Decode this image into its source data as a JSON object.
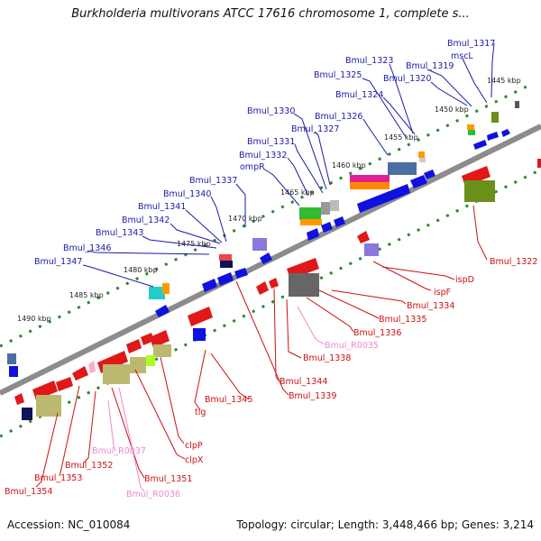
{
  "title": "Burkholderia multivorans ATCC 17616 chromosome 1, complete s...",
  "accession": "Accession: NC_010084",
  "summary": "Topology: circular; Length: 3,448,466 bp; Genes: 3,214",
  "colors": {
    "backbone": "#8c8c8c",
    "forward_gene": "#1010e0",
    "reverse_gene": "#e01818",
    "forward_label": "#1a1aa8",
    "reverse_label": "#cc1111",
    "rna_label": "#ee88cc",
    "tick_dots": "#2a8a2a"
  },
  "kbp_ticks": [
    "1445 kbp",
    "1450 kbp",
    "1455 kbp",
    "1460 kbp",
    "1465 kbp",
    "1470 kbp",
    "1475 kbp",
    "1480 kbp",
    "1485 kbp",
    "1490 kbp"
  ],
  "forward_labels": [
    "Bmul_1317",
    "mscL",
    "Bmul_1323",
    "Bmul_1319",
    "Bmul_1325",
    "Bmul_1320",
    "Bmul_1324",
    "Bmul_1330",
    "Bmul_1326",
    "Bmul_1327",
    "Bmul_1331",
    "Bmul_1332",
    "ompR",
    "Bmul_1337",
    "Bmul_1340",
    "Bmul_1341",
    "Bmul_1342",
    "Bmul_1343",
    "Bmul_1346",
    "Bmul_1347"
  ],
  "reverse_labels": [
    "Bmul_1322",
    "ispD",
    "ispF",
    "Bmul_1334",
    "Bmul_1335",
    "Bmul_1336",
    "Bmul_R0035",
    "Bmul_1338",
    "Bmul_1344",
    "Bmul_1339",
    "Bmul_1345",
    "tig",
    "clpP",
    "clpX",
    "Bmul_R0037",
    "Bmul_1351",
    "Bmul_1352",
    "Bmul_R0036",
    "Bmul_1353",
    "Bmul_1354"
  ]
}
